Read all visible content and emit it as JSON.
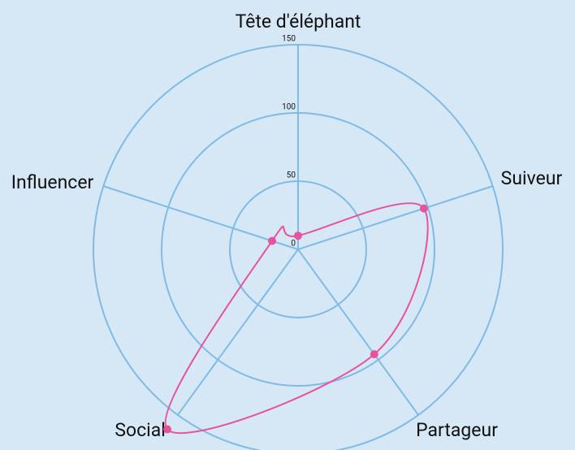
{
  "chart_data": {
    "type": "radar",
    "categories": [
      "Tête d'éléphant",
      "Suiveur",
      "Partageur",
      "Social",
      "Influencer"
    ],
    "series": [
      {
        "color": "#e8529d",
        "values": [
          10,
          97,
          95,
          163,
          20
        ]
      }
    ],
    "ylim": [
      0,
      150
    ],
    "yticks": [
      0,
      50,
      100,
      150
    ],
    "grid": true,
    "grid_color": "#7fbbe6"
  }
}
